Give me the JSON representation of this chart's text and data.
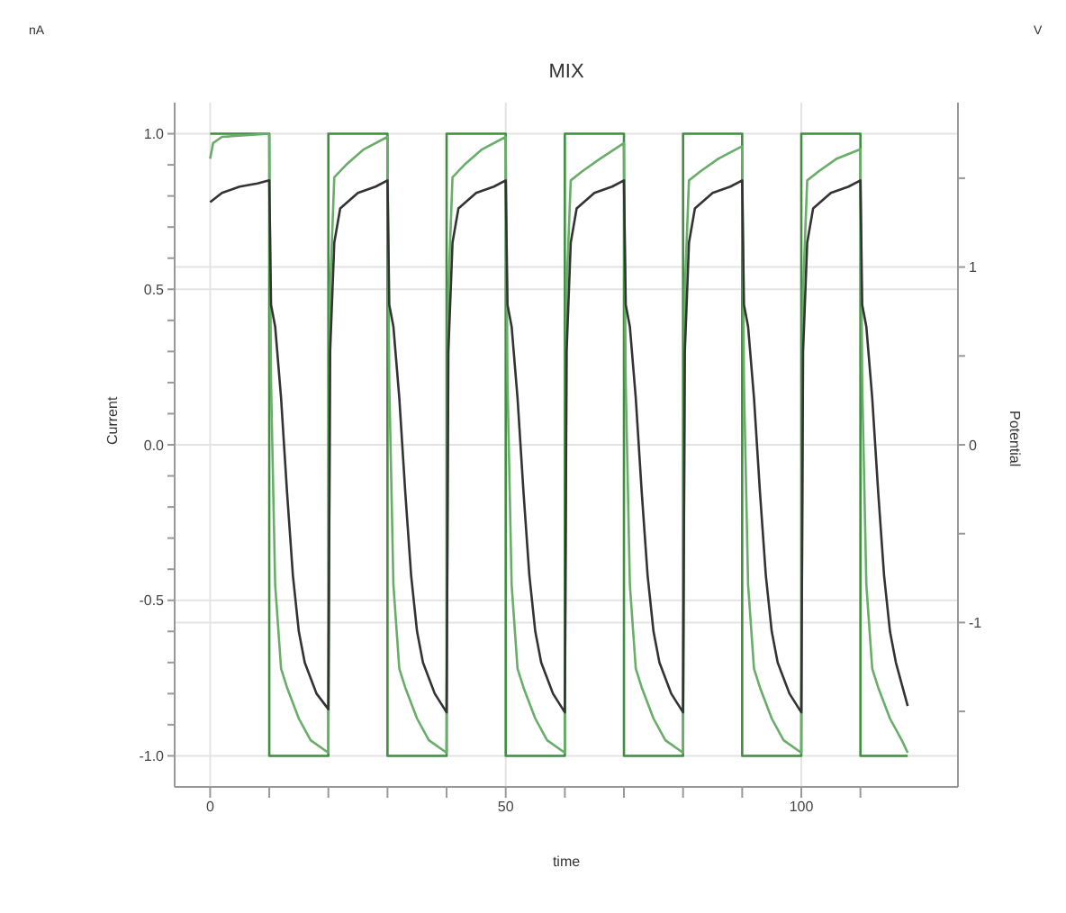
{
  "chart_data": {
    "type": "line",
    "title": "MIX",
    "xlabel": "time",
    "ylabel": "Current",
    "y2label": "Potential",
    "annotations": [
      "nA",
      "V"
    ],
    "xlim": [
      -6,
      126.5
    ],
    "xticks": [
      0,
      {
        "value": 10,
        "label": null
      },
      {
        "value": 20,
        "label": null
      },
      {
        "value": 30,
        "label": null
      },
      {
        "value": 40,
        "label": null
      },
      50,
      {
        "value": 60,
        "label": null
      },
      {
        "value": 70,
        "label": null
      },
      {
        "value": 80,
        "label": null
      },
      {
        "value": 90,
        "label": null
      },
      100,
      {
        "value": 110,
        "label": null
      }
    ],
    "ylim": [
      -1.1,
      1.1
    ],
    "yticks": [
      {
        "value": 1,
        "label": "1.0"
      },
      {
        "value": 0.9,
        "label": null
      },
      {
        "value": 0.8,
        "label": null
      },
      {
        "value": 0.7,
        "label": null
      },
      {
        "value": 0.6,
        "label": null
      },
      {
        "value": 0.5,
        "label": "0.5"
      },
      {
        "value": 0.4,
        "label": null
      },
      {
        "value": 0.3,
        "label": null
      },
      {
        "value": 0.2,
        "label": null
      },
      {
        "value": 0.1,
        "label": null
      },
      {
        "value": 0,
        "label": "0.0"
      },
      {
        "value": -0.1,
        "label": null
      },
      {
        "value": -0.2,
        "label": null
      },
      {
        "value": -0.3,
        "label": null
      },
      {
        "value": -0.4,
        "label": null
      },
      {
        "value": -0.5,
        "label": "-0.5"
      },
      {
        "value": -0.6,
        "label": null
      },
      {
        "value": -0.7,
        "label": null
      },
      {
        "value": -0.8,
        "label": null
      },
      {
        "value": -0.9,
        "label": null
      },
      {
        "value": -1,
        "label": "-1.0"
      }
    ],
    "y2lim": [
      -1.925,
      1.925
    ],
    "y2ticks": [
      {
        "value": 1.5,
        "label": null
      },
      1,
      {
        "value": 0.5,
        "label": null
      },
      0,
      {
        "value": -0.5,
        "label": null
      },
      -1,
      {
        "value": -1.5,
        "label": null
      }
    ],
    "grid": true,
    "marker": "none",
    "line_style": "solid",
    "series": [
      {
        "color": "#3f8f3f",
        "axis": "y2",
        "x": [
          0,
          10,
          10,
          20,
          20,
          30,
          30,
          40,
          40,
          50,
          50,
          60,
          60,
          70,
          70,
          80,
          80,
          90,
          90,
          100,
          100,
          110,
          110,
          118
        ],
        "values": [
          1.75,
          1.75,
          -1.75,
          -1.75,
          1.75,
          1.75,
          -1.75,
          -1.75,
          1.75,
          1.75,
          -1.75,
          -1.75,
          1.75,
          1.75,
          -1.75,
          -1.75,
          1.75,
          1.75,
          -1.75,
          -1.75,
          1.75,
          1.75,
          -1.75,
          -1.75
        ]
      },
      {
        "color": "#6aad6a",
        "x": [
          0,
          0.5,
          2,
          10,
          10.3,
          11,
          12,
          13,
          15,
          17,
          20,
          20.3,
          21,
          23,
          26,
          30,
          30.3,
          31,
          32,
          33,
          35,
          37,
          40,
          40.3,
          41,
          43,
          46,
          50,
          50.3,
          51,
          52,
          53,
          55,
          57,
          60,
          60.3,
          61,
          63,
          66,
          70,
          70.3,
          71,
          72,
          73,
          75,
          77,
          80,
          80.3,
          81,
          83,
          86,
          90,
          90.3,
          91,
          92,
          93,
          95,
          97,
          100,
          100.3,
          101,
          103,
          106,
          110,
          110.3,
          111,
          112,
          113,
          115,
          117,
          118
        ],
        "values": [
          0.92,
          0.97,
          0.99,
          1.0,
          0.2,
          -0.45,
          -0.72,
          -0.78,
          -0.88,
          -0.95,
          -0.99,
          0.5,
          0.86,
          0.9,
          0.95,
          0.99,
          0.2,
          -0.45,
          -0.72,
          -0.78,
          -0.88,
          -0.95,
          -0.99,
          0.5,
          0.86,
          0.9,
          0.95,
          0.99,
          0.2,
          -0.45,
          -0.72,
          -0.78,
          -0.88,
          -0.95,
          -0.99,
          0.5,
          0.85,
          0.88,
          0.92,
          0.97,
          0.2,
          -0.45,
          -0.72,
          -0.78,
          -0.88,
          -0.95,
          -0.99,
          0.5,
          0.85,
          0.88,
          0.92,
          0.96,
          0.2,
          -0.45,
          -0.72,
          -0.78,
          -0.88,
          -0.95,
          -0.99,
          0.5,
          0.85,
          0.88,
          0.92,
          0.95,
          0.2,
          -0.45,
          -0.72,
          -0.78,
          -0.88,
          -0.95,
          -0.99
        ]
      },
      {
        "color": "#333333",
        "x": [
          0,
          2,
          5,
          8,
          10,
          10.3,
          11,
          12,
          13,
          14,
          15,
          16,
          18,
          20,
          20.3,
          21,
          22,
          25,
          28,
          30,
          30.3,
          31,
          32,
          33,
          34,
          35,
          36,
          38,
          40,
          40.3,
          41,
          42,
          45,
          48,
          50,
          50.3,
          51,
          52,
          53,
          54,
          55,
          56,
          58,
          60,
          60.3,
          61,
          62,
          65,
          68,
          70,
          70.3,
          71,
          72,
          73,
          74,
          75,
          76,
          78,
          80,
          80.3,
          81,
          82,
          85,
          88,
          90,
          90.3,
          91,
          92,
          93,
          94,
          95,
          96,
          98,
          100,
          100.3,
          101,
          102,
          105,
          108,
          110,
          110.3,
          111,
          112,
          113,
          114,
          115,
          116,
          118
        ],
        "values": [
          0.78,
          0.81,
          0.83,
          0.84,
          0.85,
          0.45,
          0.38,
          0.15,
          -0.15,
          -0.42,
          -0.6,
          -0.7,
          -0.8,
          -0.85,
          0.3,
          0.65,
          0.76,
          0.81,
          0.83,
          0.85,
          0.45,
          0.38,
          0.15,
          -0.15,
          -0.42,
          -0.6,
          -0.7,
          -0.8,
          -0.86,
          0.3,
          0.65,
          0.76,
          0.81,
          0.83,
          0.85,
          0.45,
          0.38,
          0.15,
          -0.15,
          -0.42,
          -0.6,
          -0.7,
          -0.8,
          -0.86,
          0.3,
          0.65,
          0.76,
          0.81,
          0.83,
          0.85,
          0.45,
          0.38,
          0.15,
          -0.15,
          -0.42,
          -0.6,
          -0.7,
          -0.8,
          -0.86,
          0.3,
          0.65,
          0.76,
          0.81,
          0.83,
          0.85,
          0.45,
          0.38,
          0.15,
          -0.15,
          -0.42,
          -0.6,
          -0.7,
          -0.8,
          -0.86,
          0.3,
          0.65,
          0.76,
          0.81,
          0.83,
          0.85,
          0.45,
          0.38,
          0.15,
          -0.15,
          -0.42,
          -0.6,
          -0.7,
          -0.84
        ]
      }
    ]
  }
}
